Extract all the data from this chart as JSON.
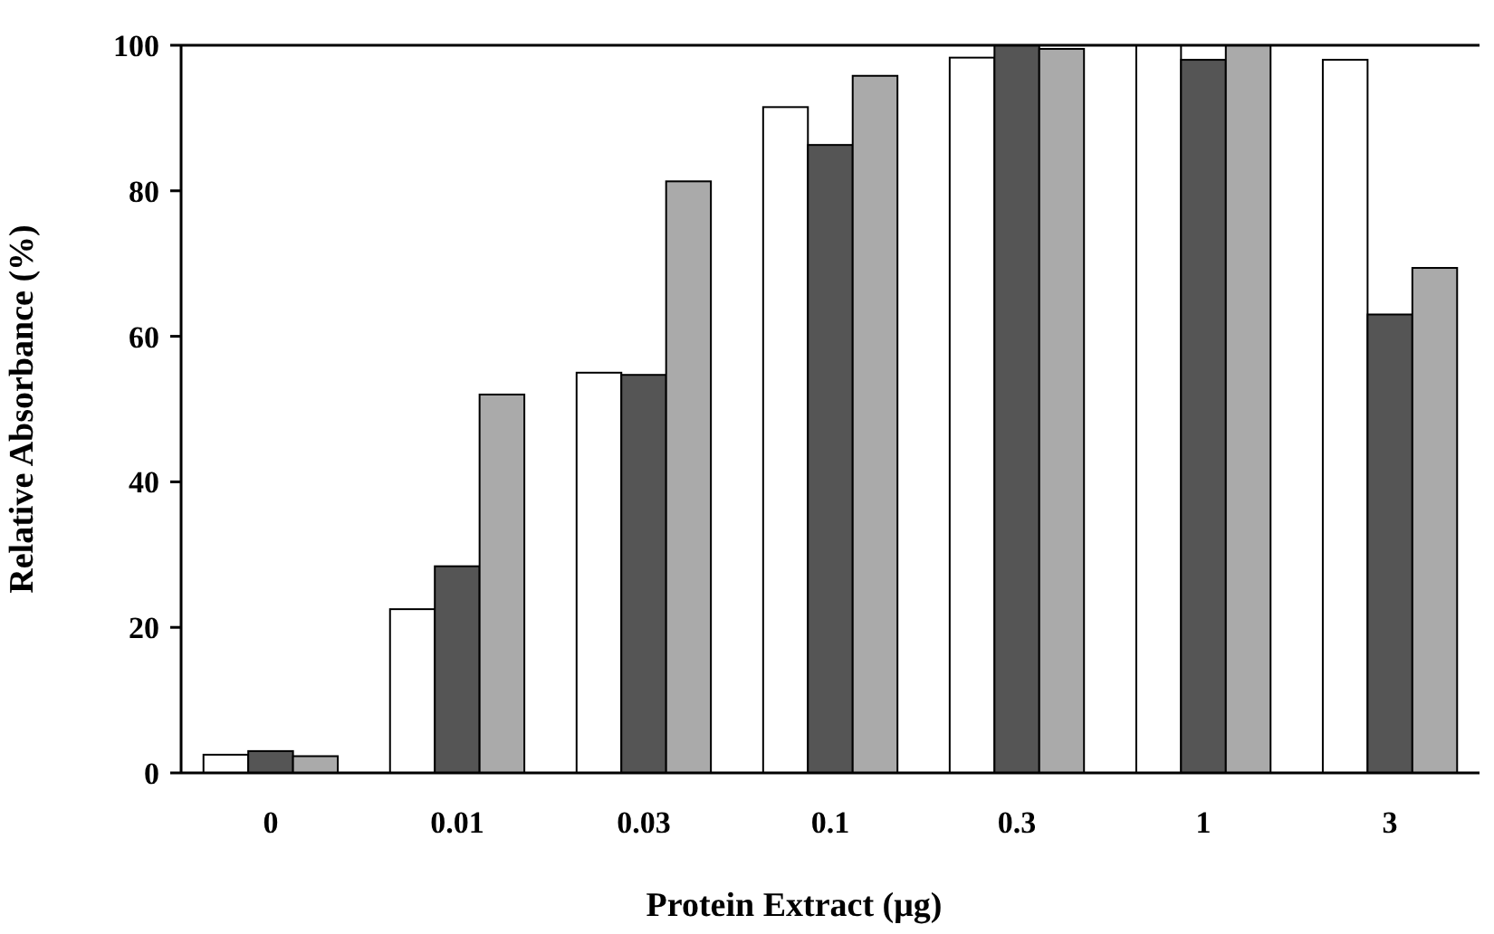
{
  "chart_data": {
    "type": "bar",
    "xlabel": "Protein Extract (μg)",
    "ylabel": "Relative Absorbance (%)",
    "categories": [
      "0",
      "0.01",
      "0.03",
      "0.1",
      "0.3",
      "1",
      "3"
    ],
    "series": [
      {
        "color": "#ffffff",
        "values": [
          2.5,
          22.5,
          55,
          91.5,
          98.3,
          100,
          98
        ]
      },
      {
        "color": "#555555",
        "values": [
          3,
          28.4,
          54.7,
          86.3,
          100,
          98,
          63
        ]
      },
      {
        "color": "#aaaaaa",
        "values": [
          2.3,
          52,
          81.3,
          95.8,
          99.5,
          100,
          69.4
        ]
      }
    ],
    "ylim": [
      0,
      100
    ],
    "yticks": [
      0,
      20,
      40,
      60,
      80,
      100
    ],
    "grid": false
  }
}
